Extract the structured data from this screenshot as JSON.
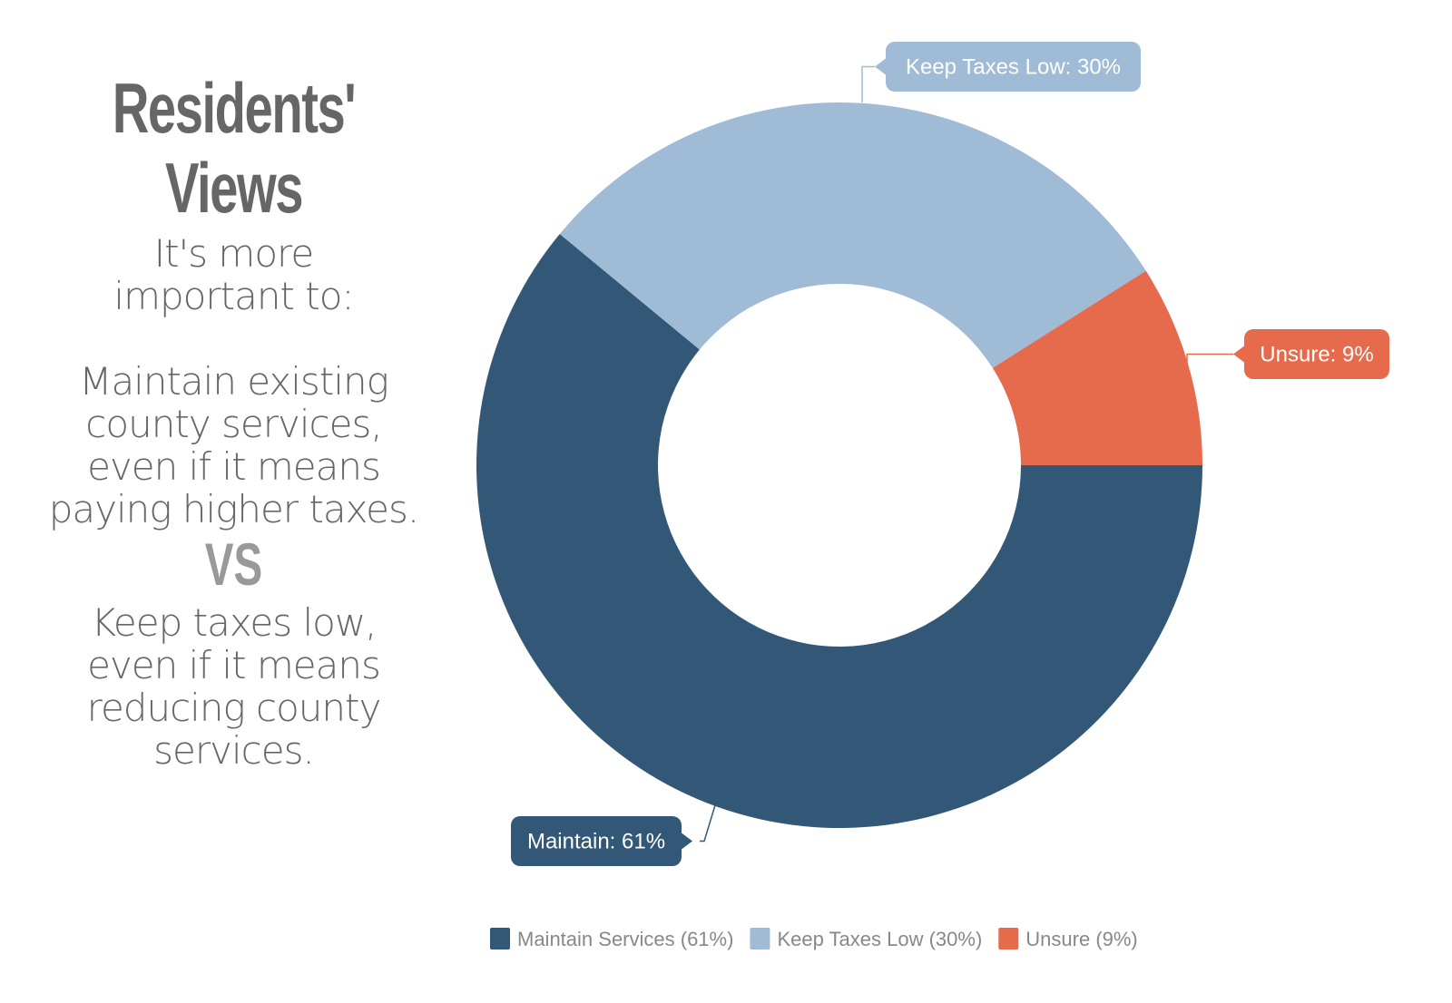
{
  "heading": {
    "title_line1": "Residents'",
    "title_line2": "Views",
    "intro": [
      "It's more",
      "important to:"
    ],
    "option_a": [
      "Maintain existing",
      "county services,",
      "even if it means",
      "paying higher taxes."
    ],
    "vs": "VS",
    "option_b": [
      "Keep taxes low,",
      "even if it means",
      "reducing county",
      "services."
    ]
  },
  "chart_data": {
    "type": "pie",
    "donut": true,
    "categories": [
      "Maintain Services",
      "Keep Taxes Low",
      "Unsure"
    ],
    "values": [
      61,
      30,
      9
    ],
    "data_labels": [
      "Maintain: 61%",
      "Keep Taxes Low: 30%",
      "Unsure: 9%"
    ],
    "legend_entries": [
      "Maintain Services (61%)",
      "Keep Taxes Low (30%)",
      "Unsure (9%)"
    ],
    "colors": [
      "#335877",
      "#9fbbd6",
      "#e66b4d"
    ],
    "legend_position": "bottom"
  }
}
